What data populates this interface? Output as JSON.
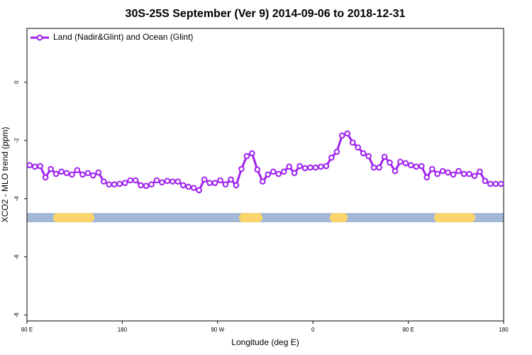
{
  "chart_data": {
    "type": "line",
    "title": "30S-25S September (Ver 9)   2014-09-06 to 2018-12-31",
    "x_label": "Longitude (deg E)",
    "y_label": "XCO2 - MLO trend (ppm)",
    "legend_position": "top-left",
    "xlim": [
      90,
      540
    ],
    "xticks": [
      {
        "value": 90,
        "label": "90 E"
      },
      {
        "value": 180,
        "label": "180"
      },
      {
        "value": 270,
        "label": "90 W"
      },
      {
        "value": 360,
        "label": "0"
      },
      {
        "value": 450,
        "label": "90 E"
      },
      {
        "value": 540,
        "label": "180"
      }
    ],
    "ylim": [
      -8.2,
      1.85
    ],
    "yticks": [
      0,
      -2,
      -4,
      -6,
      -8
    ],
    "x": [
      92.5,
      97.5,
      102.5,
      107.5,
      112.5,
      117.5,
      122.5,
      127.5,
      132.5,
      137.5,
      142.5,
      147.5,
      152.5,
      157.5,
      162.5,
      167.5,
      172.5,
      177.5,
      182.5,
      187.5,
      192.5,
      197.5,
      202.5,
      207.5,
      212.5,
      217.5,
      222.5,
      227.5,
      232.5,
      237.5,
      242.5,
      247.5,
      252.5,
      257.5,
      262.5,
      267.5,
      272.5,
      277.5,
      282.5,
      287.5,
      292.5,
      297.5,
      302.5,
      307.5,
      312.5,
      317.5,
      322.5,
      327.5,
      332.5,
      337.5,
      342.5,
      347.5,
      352.5,
      357.5,
      362.5,
      367.5,
      372.5,
      377.5,
      382.5,
      387.5,
      392.5,
      397.5,
      402.5,
      407.5,
      412.5,
      417.5,
      422.5,
      427.5,
      432.5,
      437.5,
      442.5,
      447.5,
      452.5,
      457.5,
      462.5,
      467.5,
      472.5,
      477.5,
      482.5,
      487.5,
      492.5,
      497.5,
      502.5,
      507.5,
      512.5,
      517.5,
      522.5,
      527.5,
      532.5,
      537.5
    ],
    "series": [
      {
        "name": "Land (Nadir&Glint) and Ocean (Glint)",
        "color": "#a020f0",
        "values": [
          -2.85,
          -2.9,
          -2.88,
          -3.27,
          -2.98,
          -3.15,
          -3.07,
          -3.12,
          -3.17,
          -3.02,
          -3.17,
          -3.12,
          -3.2,
          -3.1,
          -3.41,
          -3.51,
          -3.51,
          -3.49,
          -3.46,
          -3.37,
          -3.37,
          -3.54,
          -3.56,
          -3.51,
          -3.37,
          -3.44,
          -3.39,
          -3.41,
          -3.41,
          -3.54,
          -3.59,
          -3.63,
          -3.71,
          -3.34,
          -3.46,
          -3.46,
          -3.37,
          -3.51,
          -3.34,
          -3.54,
          -2.98,
          -2.54,
          -2.44,
          -3.0,
          -3.41,
          -3.17,
          -3.07,
          -3.15,
          -3.07,
          -2.9,
          -3.12,
          -2.88,
          -2.95,
          -2.93,
          -2.93,
          -2.9,
          -2.88,
          -2.59,
          -2.39,
          -1.83,
          -1.76,
          -2.07,
          -2.24,
          -2.44,
          -2.54,
          -2.93,
          -2.93,
          -2.56,
          -2.76,
          -3.05,
          -2.73,
          -2.78,
          -2.85,
          -2.9,
          -2.88,
          -3.27,
          -2.98,
          -3.15,
          -3.05,
          -3.1,
          -3.17,
          -3.05,
          -3.15,
          -3.15,
          -3.22,
          -3.07,
          -3.39,
          -3.49,
          -3.49,
          -3.49
        ]
      }
    ]
  }
}
